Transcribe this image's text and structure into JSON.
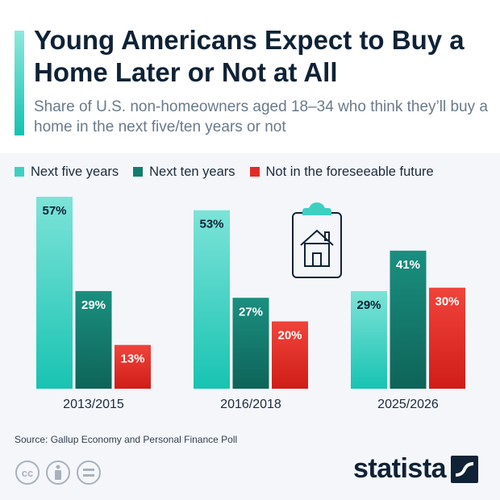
{
  "title": "Young Americans Expect to Buy a Home Later or Not at All",
  "subtitle": "Share of U.S. non-homeowners aged 18–34 who think they’ll buy a home in the next five/ten years or not",
  "source": "Source: Gallup Economy and Personal Finance Poll",
  "logo": "statista",
  "icons": {
    "illustration": "house-clipboard-icon",
    "license": [
      "cc-icon",
      "person-icon",
      "equals-icon"
    ],
    "logo_mark": "statista-logo-icon"
  },
  "colors": {
    "teal_light": "#3dd0c2",
    "teal_dark": "#127d6e",
    "red": "#e22b24",
    "title": "#0f2236"
  },
  "chart_data": {
    "type": "bar",
    "categories": [
      "2013/2015",
      "2016/2018",
      "2025/2026"
    ],
    "series": [
      {
        "name": "Next five years",
        "values": [
          57,
          53,
          29
        ],
        "color": "#3dd0c2",
        "labels": [
          "57%",
          "53%",
          "29%"
        ]
      },
      {
        "name": "Next ten years",
        "values": [
          29,
          27,
          41
        ],
        "color": "#127d6e",
        "labels": [
          "29%",
          "27%",
          "41%"
        ]
      },
      {
        "name": "Not in the foreseeable future",
        "values": [
          13,
          20,
          30
        ],
        "color": "#e22b24",
        "labels": [
          "13%",
          "20%",
          "30%"
        ]
      }
    ],
    "ylim": [
      0,
      57
    ],
    "grid": false,
    "legend": "top-left"
  }
}
